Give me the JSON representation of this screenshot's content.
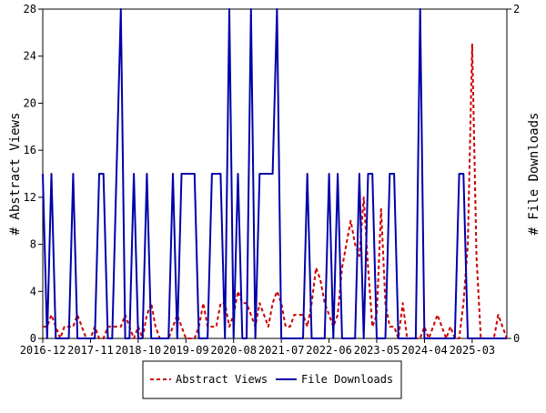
{
  "chart_data": {
    "type": "line",
    "xlabel": "",
    "ylabel_left": "# Abstract Views",
    "ylabel_right": "# File Downloads",
    "x_ticks": [
      "2016-12",
      "2017-11",
      "2018-10",
      "2019-09",
      "2020-08",
      "2021-07",
      "2022-06",
      "2023-05",
      "2024-04",
      "2025-03"
    ],
    "y_left_ticks": [
      0,
      4,
      8,
      12,
      16,
      20,
      24,
      28
    ],
    "y_right_ticks": [
      0,
      2
    ],
    "y_left_lim": [
      0,
      28
    ],
    "y_right_lim": [
      0,
      2
    ],
    "x_range_months": 107,
    "grid": false,
    "legend_position": "bottom",
    "series": [
      {
        "name": "Abstract Views",
        "axis": "left",
        "color": "#cc0000",
        "dash": "dashed",
        "points": [
          [
            0,
            1
          ],
          [
            1,
            1
          ],
          [
            2,
            2
          ],
          [
            3,
            1
          ],
          [
            4,
            0
          ],
          [
            5,
            1
          ],
          [
            6,
            1
          ],
          [
            7,
            1
          ],
          [
            8,
            2
          ],
          [
            9,
            1
          ],
          [
            10,
            0
          ],
          [
            11,
            0
          ],
          [
            12,
            1
          ],
          [
            13,
            0
          ],
          [
            14,
            0
          ],
          [
            15,
            1
          ],
          [
            16,
            1
          ],
          [
            17,
            1
          ],
          [
            18,
            1
          ],
          [
            19,
            2
          ],
          [
            20,
            1
          ],
          [
            21,
            0
          ],
          [
            22,
            1
          ],
          [
            23,
            0
          ],
          [
            24,
            2
          ],
          [
            25,
            3
          ],
          [
            26,
            1
          ],
          [
            27,
            0
          ],
          [
            28,
            0
          ],
          [
            29,
            0
          ],
          [
            30,
            1
          ],
          [
            31,
            2
          ],
          [
            32,
            1
          ],
          [
            33,
            0
          ],
          [
            34,
            0
          ],
          [
            35,
            0
          ],
          [
            36,
            1
          ],
          [
            37,
            3
          ],
          [
            38,
            1
          ],
          [
            39,
            1
          ],
          [
            40,
            1
          ],
          [
            41,
            3
          ],
          [
            42,
            3
          ],
          [
            43,
            1
          ],
          [
            44,
            2
          ],
          [
            45,
            4
          ],
          [
            46,
            3
          ],
          [
            47,
            3
          ],
          [
            48,
            2
          ],
          [
            49,
            1
          ],
          [
            50,
            3
          ],
          [
            51,
            2
          ],
          [
            52,
            1
          ],
          [
            53,
            3
          ],
          [
            54,
            4
          ],
          [
            55,
            3
          ],
          [
            56,
            1
          ],
          [
            57,
            1
          ],
          [
            58,
            2
          ],
          [
            59,
            2
          ],
          [
            60,
            2
          ],
          [
            61,
            1
          ],
          [
            62,
            3
          ],
          [
            63,
            6
          ],
          [
            64,
            5
          ],
          [
            65,
            3
          ],
          [
            66,
            2
          ],
          [
            67,
            1
          ],
          [
            68,
            2
          ],
          [
            69,
            6
          ],
          [
            70,
            8
          ],
          [
            71,
            10
          ],
          [
            72,
            8
          ],
          [
            73,
            7
          ],
          [
            74,
            12
          ],
          [
            75,
            6
          ],
          [
            76,
            1
          ],
          [
            77,
            2
          ],
          [
            78,
            11
          ],
          [
            79,
            3
          ],
          [
            80,
            1
          ],
          [
            81,
            1
          ],
          [
            82,
            0
          ],
          [
            83,
            3
          ],
          [
            84,
            0
          ],
          [
            85,
            0
          ],
          [
            86,
            0
          ],
          [
            87,
            0
          ],
          [
            88,
            1
          ],
          [
            89,
            0
          ],
          [
            90,
            1
          ],
          [
            91,
            2
          ],
          [
            92,
            1
          ],
          [
            93,
            0
          ],
          [
            94,
            1
          ],
          [
            95,
            0
          ],
          [
            96,
            0
          ],
          [
            97,
            3
          ],
          [
            98,
            8
          ],
          [
            99,
            25
          ],
          [
            100,
            7
          ],
          [
            101,
            0
          ],
          [
            102,
            0
          ],
          [
            103,
            0
          ],
          [
            104,
            0
          ],
          [
            105,
            2
          ],
          [
            106,
            1
          ],
          [
            107,
            0
          ]
        ]
      },
      {
        "name": "File Downloads",
        "axis": "right",
        "color": "#0000aa",
        "dash": "solid",
        "points": [
          [
            0,
            1
          ],
          [
            1,
            0
          ],
          [
            2,
            1
          ],
          [
            3,
            0
          ],
          [
            4,
            0
          ],
          [
            5,
            0
          ],
          [
            6,
            0
          ],
          [
            7,
            1
          ],
          [
            8,
            0
          ],
          [
            9,
            0
          ],
          [
            10,
            0
          ],
          [
            11,
            0
          ],
          [
            12,
            0
          ],
          [
            13,
            1
          ],
          [
            14,
            1
          ],
          [
            15,
            0
          ],
          [
            16,
            0
          ],
          [
            17,
            1
          ],
          [
            18,
            2
          ],
          [
            19,
            0
          ],
          [
            20,
            0
          ],
          [
            21,
            1
          ],
          [
            22,
            0
          ],
          [
            23,
            0
          ],
          [
            24,
            1
          ],
          [
            25,
            0
          ],
          [
            26,
            0
          ],
          [
            27,
            0
          ],
          [
            28,
            0
          ],
          [
            29,
            0
          ],
          [
            30,
            1
          ],
          [
            31,
            0
          ],
          [
            32,
            1
          ],
          [
            33,
            1
          ],
          [
            34,
            1
          ],
          [
            35,
            1
          ],
          [
            36,
            0
          ],
          [
            37,
            0
          ],
          [
            38,
            0
          ],
          [
            39,
            1
          ],
          [
            40,
            1
          ],
          [
            41,
            1
          ],
          [
            42,
            0
          ],
          [
            43,
            2
          ],
          [
            44,
            0
          ],
          [
            45,
            1
          ],
          [
            46,
            0
          ],
          [
            47,
            0
          ],
          [
            48,
            2
          ],
          [
            49,
            0
          ],
          [
            50,
            1
          ],
          [
            51,
            1
          ],
          [
            52,
            1
          ],
          [
            53,
            1
          ],
          [
            54,
            2
          ],
          [
            55,
            0
          ],
          [
            56,
            0
          ],
          [
            57,
            0
          ],
          [
            58,
            0
          ],
          [
            59,
            0
          ],
          [
            60,
            0
          ],
          [
            61,
            1
          ],
          [
            62,
            0
          ],
          [
            63,
            0
          ],
          [
            64,
            0
          ],
          [
            65,
            0
          ],
          [
            66,
            1
          ],
          [
            67,
            0
          ],
          [
            68,
            1
          ],
          [
            69,
            0
          ],
          [
            70,
            0
          ],
          [
            71,
            0
          ],
          [
            72,
            0
          ],
          [
            73,
            1
          ],
          [
            74,
            0
          ],
          [
            75,
            1
          ],
          [
            76,
            1
          ],
          [
            77,
            0
          ],
          [
            78,
            0
          ],
          [
            79,
            0
          ],
          [
            80,
            1
          ],
          [
            81,
            1
          ],
          [
            82,
            0
          ],
          [
            83,
            0
          ],
          [
            84,
            0
          ],
          [
            85,
            0
          ],
          [
            86,
            0
          ],
          [
            87,
            2
          ],
          [
            88,
            0
          ],
          [
            89,
            0
          ],
          [
            90,
            0
          ],
          [
            91,
            0
          ],
          [
            92,
            0
          ],
          [
            93,
            0
          ],
          [
            94,
            0
          ],
          [
            95,
            0
          ],
          [
            96,
            1
          ],
          [
            97,
            1
          ],
          [
            98,
            0
          ],
          [
            99,
            0
          ],
          [
            100,
            0
          ],
          [
            101,
            0
          ],
          [
            102,
            0
          ],
          [
            103,
            0
          ],
          [
            104,
            0
          ],
          [
            105,
            0
          ],
          [
            106,
            0
          ],
          [
            107,
            0
          ]
        ]
      }
    ]
  }
}
